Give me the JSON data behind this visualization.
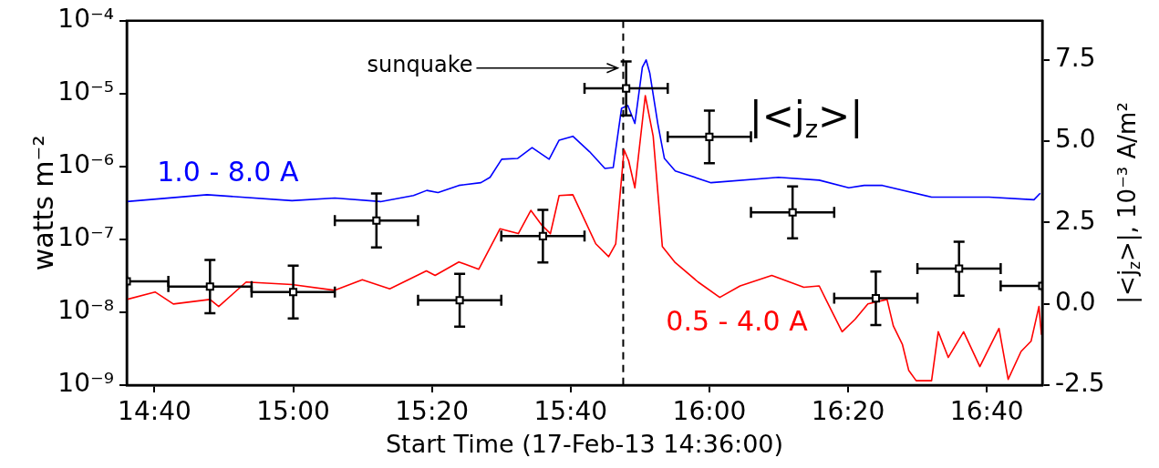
{
  "chart_data": {
    "type": "line",
    "xlabel": "Start Time (17-Feb-13 14:36:00)",
    "ylabel": "watts m⁻²",
    "y2label": "|<j$_{z}$>|, 10⁻³ A/m²",
    "xlim": [
      14.6,
      16.8
    ],
    "xticks": [
      {
        "value": 14.6667,
        "label": "14:40"
      },
      {
        "value": 15,
        "label": "15:00"
      },
      {
        "value": 15.3333,
        "label": "15:20"
      },
      {
        "value": 15.6667,
        "label": "15:40"
      },
      {
        "value": 16,
        "label": "16:00"
      },
      {
        "value": 16.3333,
        "label": "16:20"
      },
      {
        "value": 16.6667,
        "label": "16:40"
      }
    ],
    "ylim": [
      1e-09,
      0.0001
    ],
    "yticks": [
      {
        "value": 1e-09,
        "label": "10⁻⁹"
      },
      {
        "value": 1e-08,
        "label": "10⁻⁸"
      },
      {
        "value": 1e-07,
        "label": "10⁻⁷"
      },
      {
        "value": 1e-06,
        "label": "10⁻⁶"
      },
      {
        "value": 1e-05,
        "label": "10⁻⁵"
      },
      {
        "value": 0.0001,
        "label": "10⁻⁴"
      }
    ],
    "y2lim": [
      -2.5,
      8.7
    ],
    "y2ticks": [
      -2.5,
      {
        "value": 0,
        "label": "0.0"
      },
      2.5,
      {
        "value": 5,
        "label": "5.0"
      },
      7.5
    ],
    "log": "y",
    "grid": false,
    "legend": false,
    "ref_lines": [
      {
        "axis": "x",
        "value": 15.793,
        "label": "sunquake",
        "color": "#000000",
        "line_style": "dashed"
      }
    ],
    "series": [
      {
        "name": "1.0 - 8.0 A",
        "color": "#0000ff",
        "x": [
          14.6,
          14.793,
          14.997,
          15.1,
          15.21,
          15.289,
          15.321,
          15.348,
          15.398,
          15.451,
          15.473,
          15.501,
          15.539,
          15.574,
          15.615,
          15.639,
          15.672,
          15.712,
          15.749,
          15.769,
          15.789,
          15.804,
          15.821,
          15.839,
          15.848,
          15.857,
          15.876,
          15.892,
          15.918,
          16.004,
          16.166,
          16.264,
          16.335,
          16.372,
          16.416,
          16.534,
          16.672,
          16.78,
          16.795
        ],
        "values": [
          3.3e-07,
          4.1e-07,
          3.4e-07,
          3.7e-07,
          3.3e-07,
          4e-07,
          4.7e-07,
          4.4e-07,
          5.5e-07,
          6e-07,
          7.1e-07,
          1.26e-06,
          1.29e-06,
          1.82e-06,
          1.26e-06,
          2.3e-06,
          2.6e-06,
          1.6e-06,
          9.4e-07,
          9.7e-07,
          6.3e-06,
          6.9e-06,
          3.9e-06,
          2.3e-05,
          2.9e-05,
          1.9e-05,
          3.9e-06,
          1.29e-06,
          8.7e-07,
          6e-07,
          7.1e-07,
          6.5e-07,
          5.1e-07,
          5.5e-07,
          5.5e-07,
          3.8e-07,
          3.8e-07,
          3.5e-07,
          4.3e-07
        ]
      },
      {
        "name": "0.5 - 4.0 A",
        "color": "#ff0000",
        "x": [
          14.6,
          14.668,
          14.712,
          14.8,
          14.821,
          14.887,
          14.997,
          15.1,
          15.166,
          15.232,
          15.32,
          15.341,
          15.398,
          15.446,
          15.497,
          15.541,
          15.571,
          15.596,
          15.618,
          15.639,
          15.672,
          15.727,
          15.758,
          15.775,
          15.795,
          15.806,
          15.821,
          15.846,
          15.865,
          15.887,
          15.918,
          15.973,
          16.025,
          16.074,
          16.15,
          16.227,
          16.264,
          16.28,
          16.319,
          16.35,
          16.381,
          16.427,
          16.442,
          16.464,
          16.479,
          16.497,
          16.534,
          16.55,
          16.574,
          16.611,
          16.65,
          16.696,
          16.718,
          16.749,
          16.773,
          16.792,
          16.798
        ],
        "values": [
          1.5e-08,
          1.9e-08,
          1.3e-08,
          1.5e-08,
          1.2e-08,
          2.6e-08,
          2.4e-08,
          2e-08,
          2.8e-08,
          2.1e-08,
          3.7e-08,
          3.2e-08,
          4.9e-08,
          3.9e-08,
          1.4e-07,
          1.2e-07,
          2.5e-07,
          1.6e-07,
          1.2e-07,
          4e-07,
          4.1e-07,
          8.7e-08,
          5.8e-08,
          8.7e-08,
          1.7e-06,
          1.2e-06,
          5.1e-07,
          9.4e-06,
          2.6e-06,
          8e-08,
          4.8e-08,
          2.6e-08,
          1.6e-08,
          2.3e-08,
          3.2e-08,
          2.2e-08,
          2.3e-08,
          1.5e-08,
          5.4e-09,
          8e-09,
          1.3e-08,
          1.5e-08,
          6.5e-09,
          3.6e-09,
          1.6e-09,
          1.15e-09,
          1.15e-09,
          5.4e-09,
          2.4e-09,
          5.4e-09,
          1.8e-09,
          6e-09,
          1.2e-09,
          2.9e-09,
          4e-09,
          1.2e-08,
          4.9e-09
        ]
      },
      {
        "name": "|<j$_{z}$>|",
        "type": "scatter",
        "axis": "y2",
        "marker": "square",
        "color": "#000000",
        "x": [
          14.6,
          14.8,
          15.0,
          15.2,
          15.4,
          15.6,
          15.8,
          16.0,
          16.2,
          16.4,
          16.6,
          16.8
        ],
        "values": [
          0.69,
          0.53,
          0.36,
          2.56,
          0.11,
          2.08,
          6.62,
          5.13,
          2.81,
          0.17,
          1.08,
          0.55
        ],
        "errors": [
          null,
          0.82,
          0.81,
          0.83,
          0.81,
          0.81,
          0.83,
          0.81,
          0.8,
          0.82,
          0.83,
          null
        ],
        "xerrors": [
          [
            14.6,
            14.7
          ],
          0.1,
          0.1,
          0.1,
          0.1,
          0.1,
          0.1,
          0.1,
          0.1,
          0.1,
          0.1,
          [
            16.7,
            16.8
          ]
        ]
      }
    ]
  }
}
